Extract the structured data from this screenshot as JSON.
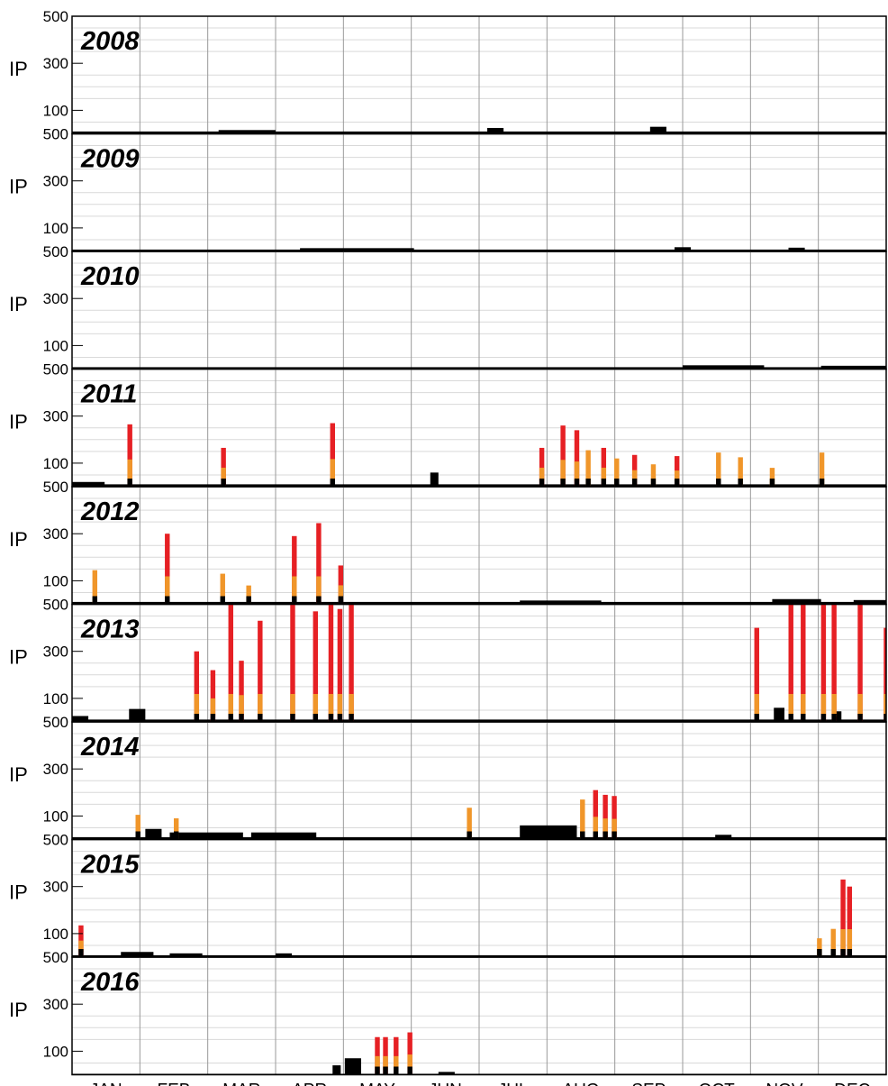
{
  "chart_data": {
    "type": "bar",
    "ylabel": "IP",
    "ylim": [
      0,
      500
    ],
    "yticks": [
      100,
      300,
      500
    ],
    "months": [
      "JAN",
      "FEB",
      "MAR",
      "APR",
      "MAY",
      "JUN",
      "JUL",
      "AUG",
      "SEP",
      "OCT",
      "NOV",
      "DEC"
    ],
    "colors": {
      "low": "#000000",
      "medium": "#f0962a",
      "high": "#e62024",
      "frame": "#000000",
      "month_grid": "#9a9a9a",
      "minor_grid": "#d9d9d9"
    },
    "panels": [
      {
        "year": "2008",
        "baseline": 10,
        "bumps": [
          [
            0.18,
            0.25,
            16
          ],
          [
            0.51,
            0.53,
            25
          ],
          [
            0.71,
            0.73,
            30
          ]
        ],
        "events": []
      },
      {
        "year": "2009",
        "baseline": 8,
        "bumps": [
          [
            0.28,
            0.42,
            14
          ],
          [
            0.74,
            0.76,
            18
          ],
          [
            0.88,
            0.9,
            16
          ]
        ],
        "events": []
      },
      {
        "year": "2010",
        "baseline": 8,
        "bumps": [
          [
            0.75,
            0.85,
            16
          ],
          [
            0.92,
            1.0,
            14
          ]
        ],
        "events": []
      },
      {
        "year": "2011",
        "baseline": 10,
        "bumps": [
          [
            0.0,
            0.04,
            20
          ],
          [
            0.44,
            0.45,
            60
          ]
        ],
        "events": [
          {
            "x": 0.068,
            "w": 0.006,
            "total": 265,
            "color": "high"
          },
          {
            "x": 0.183,
            "w": 0.006,
            "total": 165,
            "color": "high"
          },
          {
            "x": 0.317,
            "w": 0.006,
            "total": 270,
            "color": "high"
          },
          {
            "x": 0.574,
            "w": 0.006,
            "total": 165,
            "color": "high"
          },
          {
            "x": 0.6,
            "w": 0.006,
            "total": 260,
            "color": "high"
          },
          {
            "x": 0.617,
            "w": 0.006,
            "total": 240,
            "color": "high"
          },
          {
            "x": 0.631,
            "w": 0.006,
            "total": 155,
            "color": "medium"
          },
          {
            "x": 0.65,
            "w": 0.006,
            "total": 165,
            "color": "high"
          },
          {
            "x": 0.666,
            "w": 0.006,
            "total": 120,
            "color": "medium"
          },
          {
            "x": 0.688,
            "w": 0.006,
            "total": 135,
            "color": "high"
          },
          {
            "x": 0.711,
            "w": 0.006,
            "total": 95,
            "color": "medium"
          },
          {
            "x": 0.74,
            "w": 0.006,
            "total": 130,
            "color": "high"
          },
          {
            "x": 0.791,
            "w": 0.006,
            "total": 145,
            "color": "medium"
          },
          {
            "x": 0.818,
            "w": 0.006,
            "total": 125,
            "color": "medium"
          },
          {
            "x": 0.857,
            "w": 0.006,
            "total": 80,
            "color": "medium"
          },
          {
            "x": 0.918,
            "w": 0.006,
            "total": 145,
            "color": "medium"
          }
        ]
      },
      {
        "year": "2012",
        "baseline": 10,
        "bumps": [
          [
            0.55,
            0.65,
            16
          ],
          [
            0.86,
            0.92,
            22
          ],
          [
            0.96,
            1.0,
            18
          ]
        ],
        "events": [
          {
            "x": 0.025,
            "w": 0.006,
            "total": 145,
            "color": "medium"
          },
          {
            "x": 0.114,
            "w": 0.006,
            "total": 300,
            "color": "high"
          },
          {
            "x": 0.182,
            "w": 0.006,
            "total": 130,
            "color": "medium"
          },
          {
            "x": 0.214,
            "w": 0.006,
            "total": 80,
            "color": "medium"
          },
          {
            "x": 0.27,
            "w": 0.006,
            "total": 290,
            "color": "high"
          },
          {
            "x": 0.3,
            "w": 0.006,
            "total": 345,
            "color": "high"
          },
          {
            "x": 0.327,
            "w": 0.006,
            "total": 165,
            "color": "high"
          }
        ]
      },
      {
        "year": "2013",
        "baseline": 10,
        "bumps": [
          [
            0.0,
            0.02,
            25
          ],
          [
            0.07,
            0.09,
            55
          ],
          [
            0.862,
            0.875,
            60
          ],
          [
            0.935,
            0.945,
            45
          ]
        ],
        "events": [
          {
            "x": 0.15,
            "w": 0.006,
            "total": 300,
            "color": "high"
          },
          {
            "x": 0.17,
            "w": 0.006,
            "total": 220,
            "color": "high"
          },
          {
            "x": 0.192,
            "w": 0.006,
            "total": 500,
            "color": "high"
          },
          {
            "x": 0.205,
            "w": 0.006,
            "total": 260,
            "color": "high"
          },
          {
            "x": 0.228,
            "w": 0.006,
            "total": 430,
            "color": "high"
          },
          {
            "x": 0.268,
            "w": 0.006,
            "total": 500,
            "color": "high"
          },
          {
            "x": 0.296,
            "w": 0.006,
            "total": 470,
            "color": "high"
          },
          {
            "x": 0.315,
            "w": 0.006,
            "total": 500,
            "color": "high"
          },
          {
            "x": 0.326,
            "w": 0.006,
            "total": 480,
            "color": "high"
          },
          {
            "x": 0.34,
            "w": 0.006,
            "total": 500,
            "color": "high"
          },
          {
            "x": 0.838,
            "w": 0.006,
            "total": 400,
            "color": "high"
          },
          {
            "x": 0.88,
            "w": 0.006,
            "total": 500,
            "color": "high"
          },
          {
            "x": 0.895,
            "w": 0.006,
            "total": 500,
            "color": "high"
          },
          {
            "x": 0.92,
            "w": 0.006,
            "total": 500,
            "color": "high"
          },
          {
            "x": 0.933,
            "w": 0.006,
            "total": 500,
            "color": "high"
          },
          {
            "x": 0.965,
            "w": 0.006,
            "total": 500,
            "color": "high"
          },
          {
            "x": 0.997,
            "w": 0.003,
            "total": 400,
            "color": "high"
          }
        ]
      },
      {
        "year": "2014",
        "baseline": 10,
        "bumps": [
          [
            0.09,
            0.11,
            45
          ],
          [
            0.12,
            0.21,
            30
          ],
          [
            0.22,
            0.3,
            30
          ],
          [
            0.55,
            0.62,
            60
          ],
          [
            0.79,
            0.81,
            20
          ]
        ],
        "events": [
          {
            "x": 0.078,
            "w": 0.006,
            "total": 105,
            "color": "medium"
          },
          {
            "x": 0.125,
            "w": 0.006,
            "total": 90,
            "color": "medium"
          },
          {
            "x": 0.485,
            "w": 0.006,
            "total": 135,
            "color": "medium"
          },
          {
            "x": 0.624,
            "w": 0.006,
            "total": 170,
            "color": "medium"
          },
          {
            "x": 0.64,
            "w": 0.006,
            "total": 210,
            "color": "high"
          },
          {
            "x": 0.652,
            "w": 0.006,
            "total": 190,
            "color": "high"
          },
          {
            "x": 0.663,
            "w": 0.006,
            "total": 185,
            "color": "high"
          }
        ]
      },
      {
        "year": "2015",
        "baseline": 8,
        "bumps": [
          [
            0.06,
            0.1,
            22
          ],
          [
            0.12,
            0.16,
            16
          ],
          [
            0.25,
            0.27,
            16
          ]
        ],
        "events": [
          {
            "x": 0.008,
            "w": 0.006,
            "total": 135,
            "color": "high"
          },
          {
            "x": 0.915,
            "w": 0.006,
            "total": 80,
            "color": "medium"
          },
          {
            "x": 0.932,
            "w": 0.006,
            "total": 120,
            "color": "medium"
          },
          {
            "x": 0.944,
            "w": 0.006,
            "total": 330,
            "color": "high"
          },
          {
            "x": 0.952,
            "w": 0.006,
            "total": 300,
            "color": "high"
          }
        ]
      },
      {
        "year": "2016",
        "baseline": 4,
        "bumps": [
          [
            0.32,
            0.33,
            40
          ],
          [
            0.335,
            0.355,
            70
          ],
          [
            0.45,
            0.47,
            12
          ]
        ],
        "events": [
          {
            "x": 0.372,
            "w": 0.006,
            "total": 160,
            "color": "high"
          },
          {
            "x": 0.382,
            "w": 0.006,
            "total": 160,
            "color": "high"
          },
          {
            "x": 0.395,
            "w": 0.006,
            "total": 160,
            "color": "high"
          },
          {
            "x": 0.412,
            "w": 0.006,
            "total": 180,
            "color": "high"
          }
        ]
      }
    ]
  }
}
